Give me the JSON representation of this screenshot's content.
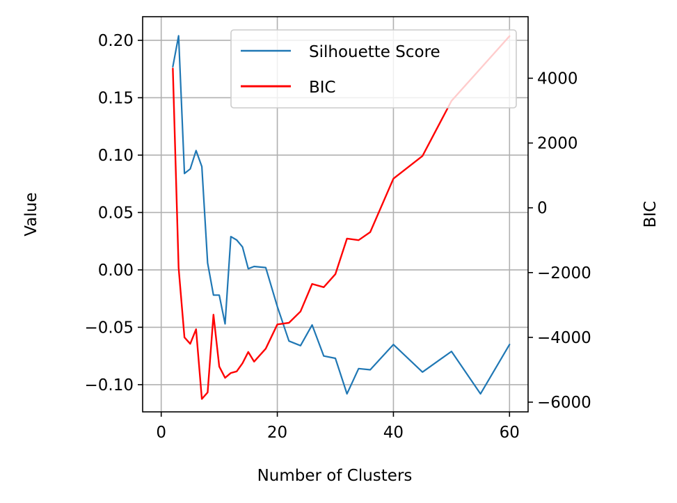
{
  "chart_data": {
    "type": "line",
    "xlabel": "Number of Clusters",
    "ylabel": "Value",
    "y2label": "BIC",
    "xlim": [
      -3.2,
      63.2
    ],
    "ylim": [
      -0.1237,
      0.2206
    ],
    "y2lim": [
      -6300,
      5900
    ],
    "xticks": [
      0,
      20,
      40,
      60
    ],
    "yticks": [
      -0.1,
      -0.05,
      0.0,
      0.05,
      0.1,
      0.15,
      0.2
    ],
    "ytick_labels": [
      "−0.10",
      "−0.05",
      "0.00",
      "0.05",
      "0.10",
      "0.15",
      "0.20"
    ],
    "y2ticks": [
      -6000,
      -4000,
      -2000,
      0,
      2000,
      4000
    ],
    "y2tick_labels": [
      "−6000",
      "−4000",
      "−2000",
      "0",
      "2000",
      "4000"
    ],
    "grid": true,
    "legend_position": "top-right",
    "series": [
      {
        "name": "Silhouette Score",
        "axis": "left",
        "color": "#1f77b4",
        "x": [
          2,
          3,
          4,
          5,
          6,
          7,
          8,
          9,
          10,
          11,
          12,
          13,
          14,
          15,
          16,
          18,
          20,
          22,
          24,
          26,
          28,
          30,
          32,
          34,
          36,
          40,
          45,
          50,
          55,
          60
        ],
        "y": [
          0.177,
          0.204,
          0.084,
          0.088,
          0.104,
          0.09,
          0.006,
          -0.022,
          -0.022,
          -0.047,
          0.029,
          0.026,
          0.02,
          0.001,
          0.003,
          0.002,
          -0.032,
          -0.062,
          -0.066,
          -0.048,
          -0.075,
          -0.077,
          -0.108,
          -0.086,
          -0.087,
          -0.065,
          -0.089,
          -0.071,
          -0.108,
          -0.065
        ]
      },
      {
        "name": "BIC",
        "axis": "right",
        "color": "#ff0000",
        "x": [
          2,
          3,
          4,
          5,
          6,
          7,
          8,
          9,
          10,
          11,
          12,
          13,
          14,
          15,
          16,
          18,
          20,
          22,
          24,
          26,
          28,
          30,
          32,
          34,
          36,
          40,
          45,
          50,
          55,
          60
        ],
        "y": [
          4300,
          -1850,
          -4000,
          -4200,
          -3750,
          -5900,
          -5700,
          -3300,
          -4900,
          -5250,
          -5100,
          -5050,
          -4800,
          -4450,
          -4750,
          -4350,
          -3600,
          -3550,
          -3200,
          -2350,
          -2450,
          -2050,
          -950,
          -1000,
          -750,
          900,
          1600,
          3300,
          4300,
          5300
        ]
      }
    ]
  }
}
